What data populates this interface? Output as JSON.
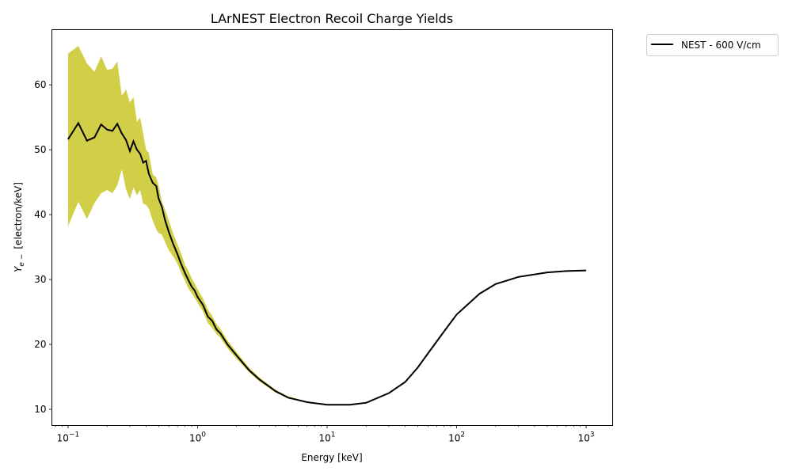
{
  "chart_data": {
    "type": "line",
    "title": "LArNEST Electron Recoil Charge Yields",
    "xlabel": "Energy [keV]",
    "ylabel": "Y_e- [electron/keV]",
    "ylabel_symbol": "Y",
    "ylabel_sub": "e −",
    "ylabel_unit": "[electron/keV]",
    "x_scale": "log",
    "xlim": [
      0.075,
      1600
    ],
    "ylim": [
      7.5,
      68.5
    ],
    "x_ticks": [
      {
        "value": 0.1,
        "base": "10",
        "exp": "−1"
      },
      {
        "value": 1,
        "base": "10",
        "exp": "0"
      },
      {
        "value": 10,
        "base": "10",
        "exp": "1"
      },
      {
        "value": 100,
        "base": "10",
        "exp": "2"
      },
      {
        "value": 1000,
        "base": "10",
        "exp": "3"
      }
    ],
    "y_ticks": [
      10,
      20,
      30,
      40,
      50,
      60
    ],
    "grid": false,
    "legend_position": "outside-top-right",
    "series": [
      {
        "name": "NEST - 600 V/cm",
        "color": "#000000",
        "band_color": "#c9c628",
        "x": [
          0.1,
          0.12,
          0.14,
          0.16,
          0.18,
          0.2,
          0.22,
          0.24,
          0.26,
          0.28,
          0.3,
          0.32,
          0.34,
          0.36,
          0.38,
          0.4,
          0.42,
          0.45,
          0.48,
          0.5,
          0.53,
          0.56,
          0.6,
          0.65,
          0.7,
          0.75,
          0.8,
          0.85,
          0.9,
          0.95,
          1.0,
          1.1,
          1.2,
          1.3,
          1.4,
          1.5,
          1.7,
          2.0,
          2.5,
          3.0,
          4.0,
          5.0,
          7.0,
          10,
          15,
          20,
          30,
          40,
          50,
          60,
          80,
          100,
          150,
          200,
          300,
          500,
          700,
          1000
        ],
        "y": [
          51.6,
          54.1,
          51.4,
          51.9,
          53.9,
          53.1,
          52.9,
          54.0,
          52.5,
          51.5,
          49.8,
          51.3,
          50.0,
          49.4,
          48.0,
          48.3,
          46.3,
          44.9,
          44.4,
          42.5,
          41.2,
          39.2,
          37.3,
          35.4,
          33.9,
          32.3,
          31.0,
          29.9,
          28.9,
          28.3,
          27.3,
          26.1,
          24.3,
          23.6,
          22.3,
          21.7,
          20.0,
          18.3,
          16.0,
          14.6,
          12.8,
          11.8,
          11.1,
          10.7,
          10.7,
          11.0,
          12.5,
          14.2,
          16.4,
          18.6,
          22.0,
          24.6,
          27.8,
          29.3,
          30.4,
          31.1,
          31.3,
          31.4
        ],
        "upper": [
          64.8,
          66.0,
          63.3,
          62.0,
          64.4,
          62.3,
          62.5,
          63.6,
          58.3,
          59.3,
          57.3,
          58.1,
          54.3,
          55.0,
          52.5,
          50.0,
          49.5,
          46.2,
          45.7,
          44.5,
          42.0,
          40.8,
          39.1,
          37.0,
          35.4,
          33.9,
          32.3,
          31.3,
          30.2,
          29.4,
          28.5,
          27.1,
          25.4,
          24.4,
          23.1,
          22.4,
          20.6,
          18.8,
          16.4,
          14.9,
          13.0,
          12.0,
          11.2,
          10.8,
          10.8,
          11.1,
          12.6,
          14.3,
          16.5,
          18.7,
          22.1,
          24.7,
          27.9,
          29.4,
          30.5,
          31.2,
          31.4,
          31.5
        ],
        "lower": [
          38.2,
          42.0,
          39.3,
          41.8,
          43.3,
          43.8,
          43.3,
          44.5,
          47.0,
          43.9,
          42.4,
          44.2,
          43.0,
          43.8,
          41.7,
          41.5,
          40.9,
          39.1,
          37.7,
          37.2,
          36.9,
          35.8,
          34.5,
          33.5,
          32.4,
          31.0,
          29.8,
          28.6,
          27.9,
          27.2,
          26.4,
          25.1,
          23.3,
          22.5,
          21.6,
          21.0,
          19.4,
          17.8,
          15.7,
          14.3,
          12.6,
          11.7,
          11.0,
          10.6,
          10.6,
          10.9,
          12.4,
          14.1,
          16.3,
          18.5,
          21.9,
          24.5,
          27.7,
          29.2,
          30.3,
          31.0,
          31.2,
          31.3
        ]
      }
    ]
  }
}
